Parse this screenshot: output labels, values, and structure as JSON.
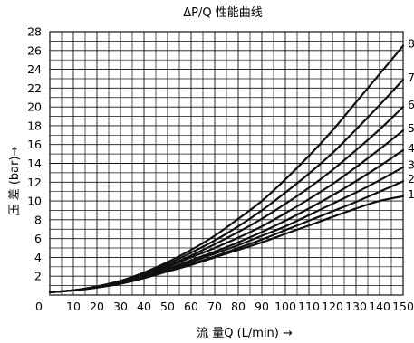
{
  "chart_data": {
    "type": "line",
    "title": "ΔP/Q 性能曲线",
    "xlabel": "流 量Q (L/min) →",
    "ylabel": "压 差 (bar)→",
    "xlim": [
      0,
      150
    ],
    "ylim": [
      0,
      28
    ],
    "x_ticks": [
      "0",
      "10",
      "20",
      "30",
      "40",
      "50",
      "60",
      "70",
      "80",
      "90",
      "100",
      "110",
      "120",
      "130",
      "140",
      "150"
    ],
    "y_ticks": [
      "2",
      "4",
      "6",
      "8",
      "10",
      "12",
      "14",
      "16",
      "18",
      "20",
      "22",
      "24",
      "26",
      "28"
    ],
    "grid": true,
    "x": [
      0,
      10,
      20,
      30,
      40,
      50,
      60,
      70,
      80,
      90,
      100,
      110,
      120,
      130,
      140,
      150
    ],
    "series": [
      {
        "values": [
          0.3,
          0.5,
          0.9,
          1.5,
          2.4,
          3.5,
          4.8,
          6.3,
          8.1,
          10.0,
          12.3,
          14.8,
          17.5,
          20.5,
          23.5,
          26.5
        ]
      },
      {
        "values": [
          0.3,
          0.5,
          0.9,
          1.5,
          2.3,
          3.3,
          4.5,
          5.8,
          7.3,
          9.0,
          10.9,
          12.9,
          15.1,
          17.6,
          20.2,
          22.9
        ]
      },
      {
        "values": [
          0.3,
          0.5,
          0.9,
          1.5,
          2.2,
          3.1,
          4.2,
          5.4,
          6.7,
          8.1,
          9.7,
          11.4,
          13.3,
          15.4,
          17.6,
          20.0
        ]
      },
      {
        "values": [
          0.3,
          0.5,
          0.8,
          1.4,
          2.1,
          3.0,
          4.0,
          5.0,
          6.1,
          7.3,
          8.7,
          10.2,
          11.8,
          13.6,
          15.5,
          17.5
        ]
      },
      {
        "values": [
          0.3,
          0.5,
          0.8,
          1.3,
          2.0,
          2.8,
          3.7,
          4.6,
          5.6,
          6.7,
          7.9,
          9.2,
          10.6,
          12.1,
          13.7,
          15.4
        ]
      },
      {
        "values": [
          0.3,
          0.5,
          0.8,
          1.3,
          1.9,
          2.7,
          3.5,
          4.4,
          5.3,
          6.3,
          7.3,
          8.5,
          9.7,
          10.9,
          12.2,
          13.6
        ]
      },
      {
        "values": [
          0.3,
          0.5,
          0.8,
          1.3,
          1.9,
          2.6,
          3.3,
          4.1,
          5.0,
          5.9,
          6.9,
          7.9,
          8.9,
          9.9,
          11.0,
          12.1
        ]
      },
      {
        "values": [
          0.3,
          0.5,
          0.8,
          1.2,
          1.8,
          2.5,
          3.2,
          4.0,
          4.8,
          5.6,
          6.5,
          7.4,
          8.3,
          9.2,
          10.0,
          10.5
        ]
      }
    ],
    "series_end_labels": [
      "8",
      "7",
      "6",
      "5",
      "4",
      "3",
      "2",
      "1"
    ]
  },
  "colors": {
    "line": "#111111",
    "grid": "#111111",
    "background": "#ffffff"
  }
}
